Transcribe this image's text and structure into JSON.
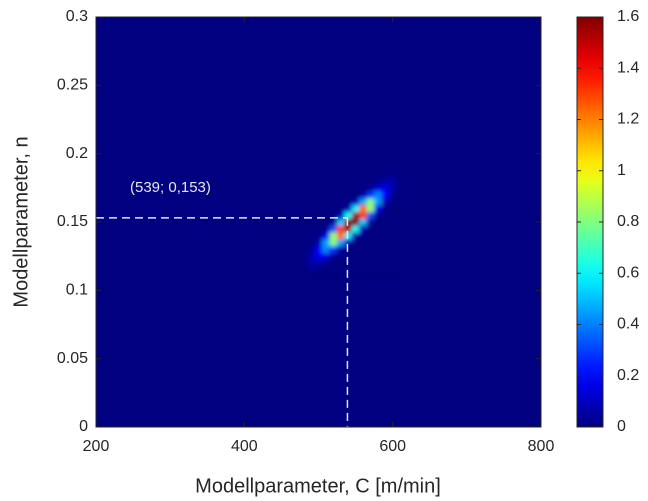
{
  "chart_data": {
    "type": "heatmap",
    "xlabel": "Modellparameter, C [m/min]",
    "ylabel": "Modellparameter, n",
    "xlim": [
      200,
      800
    ],
    "xticks": [
      200,
      400,
      600,
      800
    ],
    "ylim": [
      0,
      0.3
    ],
    "yticks": [
      0,
      0.05,
      0.1,
      0.15,
      0.2,
      0.25,
      0.3
    ],
    "colormap": "jet",
    "clim": [
      0,
      1.6
    ],
    "cticks": [
      0,
      0.2,
      0.4,
      0.6,
      0.8,
      1,
      1.2,
      1.4,
      1.6
    ],
    "x": [
      490,
      500,
      510,
      520,
      530,
      540,
      550,
      560,
      570,
      580,
      590,
      600
    ],
    "y": [
      0.115,
      0.12,
      0.125,
      0.13,
      0.135,
      0.14,
      0.145,
      0.15,
      0.155,
      0.16,
      0.165,
      0.17,
      0.175,
      0.18,
      0.185
    ],
    "z": [
      [
        0.02,
        0,
        0,
        0,
        0,
        0,
        0,
        0,
        0,
        0,
        0,
        0
      ],
      [
        0.06,
        0.06,
        0.02,
        0,
        0,
        0,
        0,
        0,
        0,
        0,
        0,
        0
      ],
      [
        0.07,
        0.17,
        0.15,
        0.03,
        0,
        0,
        0,
        0,
        0,
        0,
        0,
        0
      ],
      [
        0.02,
        0.2,
        0.41,
        0.29,
        0.06,
        0,
        0,
        0,
        0,
        0,
        0,
        0
      ],
      [
        0,
        0.08,
        0.45,
        0.81,
        0.45,
        0.08,
        0,
        0,
        0,
        0,
        0,
        0
      ],
      [
        0,
        0.01,
        0.18,
        0.84,
        1.24,
        0.58,
        0.08,
        0,
        0,
        0,
        0,
        0
      ],
      [
        0,
        0,
        0.02,
        0.33,
        1.3,
        1.56,
        0.61,
        0.08,
        0,
        0,
        0,
        0
      ],
      [
        0,
        0,
        0,
        0.05,
        0.51,
        1.6,
        1.6,
        0.51,
        0.05,
        0,
        0,
        0
      ],
      [
        0,
        0,
        0,
        0,
        0.08,
        0.61,
        1.56,
        1.3,
        0.33,
        0.02,
        0,
        0
      ],
      [
        0,
        0,
        0,
        0,
        0,
        0.08,
        0.58,
        1.24,
        0.84,
        0.18,
        0.01,
        0
      ],
      [
        0,
        0,
        0,
        0,
        0,
        0,
        0.08,
        0.45,
        0.81,
        0.45,
        0.08,
        0
      ],
      [
        0,
        0,
        0,
        0,
        0,
        0,
        0,
        0.06,
        0.29,
        0.41,
        0.2,
        0.02
      ],
      [
        0,
        0,
        0,
        0,
        0,
        0,
        0,
        0,
        0.03,
        0.15,
        0.17,
        0.07
      ],
      [
        0,
        0,
        0,
        0,
        0,
        0,
        0,
        0,
        0,
        0.02,
        0.06,
        0.06
      ],
      [
        0,
        0,
        0,
        0,
        0,
        0,
        0,
        0,
        0,
        0,
        0,
        0.02
      ]
    ],
    "marker": {
      "x": 539,
      "y": 0.153,
      "label": "(539; 0,153)"
    }
  }
}
